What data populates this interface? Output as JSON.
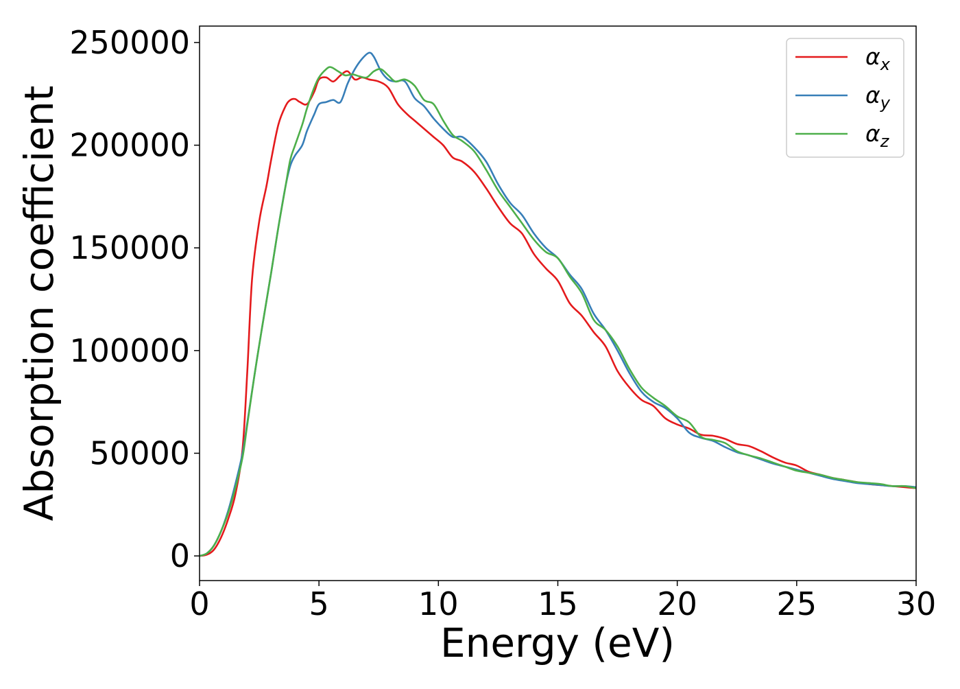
{
  "chart_data": {
    "type": "line",
    "title": "",
    "xlabel": "Energy (eV)",
    "ylabel": "Absorption coefficient",
    "xlim": [
      0,
      30
    ],
    "ylim": [
      -12000,
      258000
    ],
    "xticks": [
      0,
      5,
      10,
      15,
      20,
      25,
      30
    ],
    "yticks": [
      0,
      50000,
      100000,
      150000,
      200000,
      250000
    ],
    "xtick_labels": [
      "0",
      "5",
      "10",
      "15",
      "20",
      "25",
      "30"
    ],
    "ytick_labels": [
      "0",
      "50000",
      "100000",
      "150000",
      "200000",
      "250000"
    ],
    "grid": false,
    "legend_position": "top-right",
    "series": [
      {
        "name": "α_x",
        "symbol": "α",
        "subscript": "x",
        "color": "#e41a1c",
        "x": [
          0,
          0.3,
          0.6,
          0.9,
          1.2,
          1.5,
          1.8,
          2.0,
          2.2,
          2.5,
          2.8,
          3.0,
          3.3,
          3.6,
          3.8,
          4.0,
          4.2,
          4.5,
          4.8,
          5.0,
          5.3,
          5.6,
          5.9,
          6.2,
          6.5,
          6.8,
          7.1,
          7.5,
          7.9,
          8.3,
          8.7,
          9.0,
          9.4,
          9.8,
          10.2,
          10.6,
          11.0,
          11.5,
          12.0,
          12.5,
          13.0,
          13.5,
          14.0,
          14.5,
          15.0,
          15.5,
          16.0,
          16.5,
          17.0,
          17.5,
          18.0,
          18.5,
          19.0,
          19.5,
          20.0,
          20.5,
          21.0,
          21.5,
          22.0,
          22.5,
          23.0,
          23.5,
          24.0,
          24.5,
          25.0,
          25.5,
          26.0,
          26.5,
          27.0,
          27.5,
          28.0,
          28.5,
          29.0,
          29.5,
          30.0
        ],
        "y": [
          0,
          600,
          3000,
          9000,
          18000,
          30000,
          52000,
          90000,
          135000,
          163000,
          180000,
          193000,
          210000,
          219000,
          222000,
          222500,
          221000,
          220000,
          226000,
          232000,
          233000,
          231000,
          234000,
          236000,
          232000,
          233000,
          232000,
          231000,
          228000,
          220000,
          215000,
          212000,
          208000,
          204000,
          200000,
          194000,
          192000,
          187000,
          179000,
          170000,
          162000,
          157000,
          147000,
          140000,
          134000,
          123000,
          117000,
          109000,
          102000,
          90000,
          82000,
          76000,
          73000,
          67000,
          64000,
          62000,
          59000,
          58500,
          57000,
          54500,
          53500,
          51000,
          48000,
          45500,
          44000,
          41000,
          39500,
          38000,
          37000,
          36000,
          35000,
          34500,
          34000,
          33500,
          33000
        ]
      },
      {
        "name": "α_y",
        "symbol": "α",
        "subscript": "y",
        "color": "#377eb8",
        "x": [
          0,
          0.3,
          0.6,
          0.9,
          1.2,
          1.5,
          1.8,
          2.0,
          2.3,
          2.6,
          3.0,
          3.3,
          3.6,
          3.8,
          4.0,
          4.3,
          4.5,
          4.8,
          5.0,
          5.3,
          5.6,
          5.9,
          6.2,
          6.5,
          6.8,
          7.1,
          7.3,
          7.6,
          7.9,
          8.2,
          8.6,
          9.0,
          9.4,
          9.8,
          10.2,
          10.6,
          11.0,
          11.5,
          12.0,
          12.5,
          13.0,
          13.5,
          14.0,
          14.5,
          15.0,
          15.5,
          16.0,
          16.5,
          17.0,
          17.5,
          18.0,
          18.5,
          19.0,
          19.5,
          20.0,
          20.5,
          21.0,
          21.5,
          22.0,
          22.5,
          23.0,
          23.5,
          24.0,
          24.5,
          25.0,
          25.5,
          26.0,
          26.5,
          27.0,
          27.5,
          28.0,
          28.5,
          29.0,
          29.5,
          30.0
        ],
        "y": [
          0,
          1200,
          5000,
          12000,
          22000,
          35000,
          50000,
          65000,
          88000,
          110000,
          138000,
          160000,
          180000,
          190000,
          195000,
          200000,
          207000,
          215000,
          220000,
          221000,
          222000,
          221000,
          230000,
          237000,
          242000,
          245000,
          243000,
          236000,
          232000,
          231000,
          231000,
          223000,
          219000,
          213000,
          208000,
          204000,
          204000,
          199000,
          192000,
          181000,
          172000,
          166000,
          157000,
          150000,
          145000,
          137000,
          130000,
          118000,
          110000,
          100000,
          89000,
          80000,
          75000,
          72000,
          67000,
          60000,
          57500,
          56000,
          53000,
          50500,
          49000,
          47000,
          45000,
          43500,
          42000,
          40500,
          39000,
          37500,
          36500,
          35500,
          35000,
          34500,
          34000,
          34000,
          33500
        ]
      },
      {
        "name": "α_z",
        "symbol": "α",
        "subscript": "z",
        "color": "#4daf4a",
        "x": [
          0,
          0.3,
          0.6,
          0.9,
          1.2,
          1.5,
          1.8,
          2.0,
          2.3,
          2.6,
          3.0,
          3.3,
          3.6,
          3.8,
          4.0,
          4.3,
          4.5,
          4.8,
          5.0,
          5.3,
          5.5,
          5.8,
          6.1,
          6.4,
          6.7,
          7.0,
          7.3,
          7.6,
          7.9,
          8.2,
          8.6,
          9.0,
          9.4,
          9.8,
          10.2,
          10.6,
          11.0,
          11.5,
          12.0,
          12.5,
          13.0,
          13.5,
          14.0,
          14.5,
          15.0,
          15.5,
          16.0,
          16.5,
          17.0,
          17.5,
          18.0,
          18.5,
          19.0,
          19.5,
          20.0,
          20.5,
          21.0,
          21.5,
          22.0,
          22.5,
          23.0,
          23.5,
          24.0,
          24.5,
          25.0,
          25.5,
          26.0,
          26.5,
          27.0,
          27.5,
          28.0,
          28.5,
          29.0,
          29.5,
          30.0
        ],
        "y": [
          0,
          1200,
          5000,
          12000,
          21000,
          33000,
          48000,
          64000,
          88000,
          110000,
          138000,
          160000,
          180000,
          193000,
          200000,
          210000,
          218000,
          228000,
          233000,
          237000,
          238000,
          236000,
          234000,
          234500,
          233500,
          233000,
          236000,
          237000,
          234000,
          231000,
          232000,
          229000,
          222000,
          220000,
          212000,
          205000,
          202000,
          197000,
          188000,
          178000,
          170000,
          162000,
          154000,
          148000,
          145000,
          136000,
          128000,
          115000,
          110000,
          102000,
          91000,
          82000,
          77000,
          73000,
          68000,
          65000,
          58000,
          56500,
          55000,
          51000,
          49000,
          47500,
          45500,
          43500,
          41500,
          40500,
          39500,
          38000,
          37000,
          36000,
          35500,
          35000,
          34000,
          34000,
          33000
        ]
      }
    ]
  }
}
